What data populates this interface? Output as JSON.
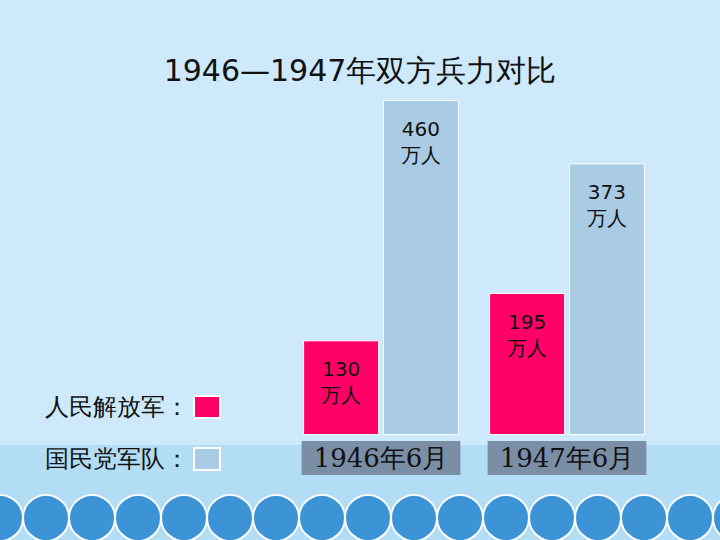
{
  "chart_data": {
    "type": "bar",
    "title": "1946—1947年双方兵力对比",
    "categories": [
      "1946年6月",
      "1947年6月"
    ],
    "series": [
      {
        "name": "人民解放军：",
        "color": "#ff0066",
        "values": [
          130,
          195
        ],
        "value_labels": [
          "130万人",
          "195万人"
        ]
      },
      {
        "name": "国民党军队：",
        "color": "#a9cbe3",
        "values": [
          460,
          373
        ],
        "value_labels": [
          "460万人",
          "373万人"
        ]
      }
    ],
    "data_labels": true,
    "legend": "lower left",
    "tick_labels": "x",
    "grid": false
  }
}
